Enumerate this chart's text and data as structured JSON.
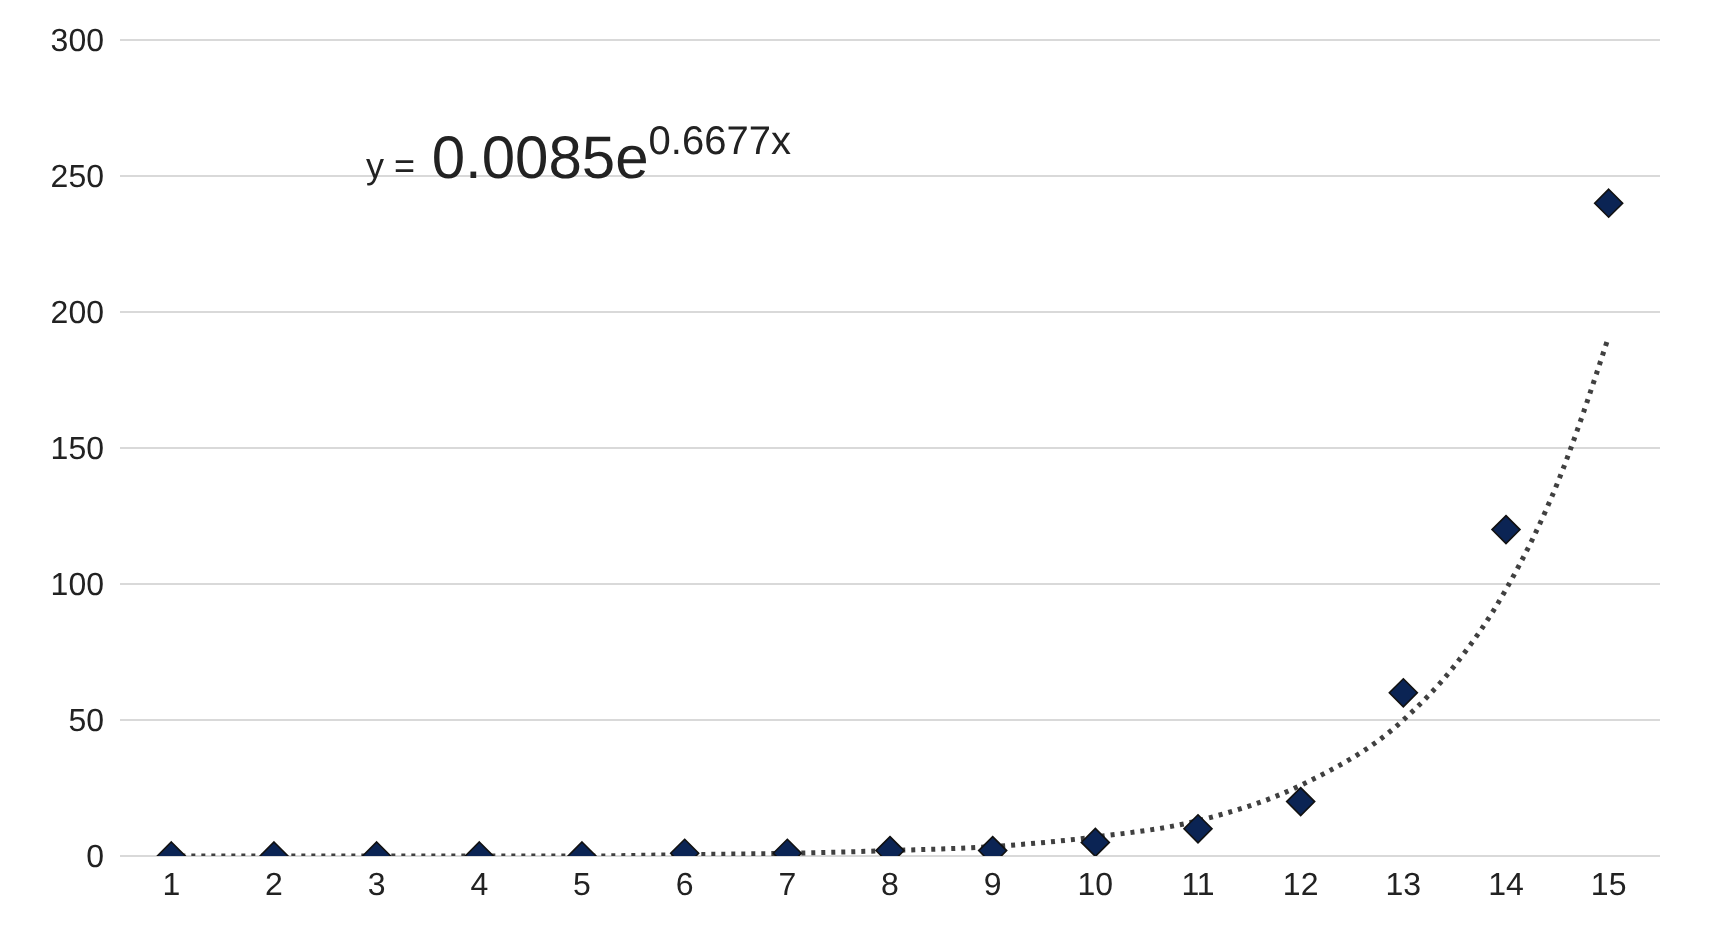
{
  "chart_data": {
    "type": "scatter",
    "xlim": [
      0.5,
      15.5
    ],
    "xticks": [
      1,
      2,
      3,
      4,
      5,
      6,
      7,
      8,
      9,
      10,
      11,
      12,
      13,
      14,
      15
    ],
    "ylim": [
      0,
      300
    ],
    "yticks": [
      0,
      50,
      100,
      150,
      200,
      250,
      300
    ],
    "grid": "y",
    "annotations": [
      "y = 0.0085e$^{0.6677x}$"
    ],
    "series": [
      {
        "type": "line",
        "color": "#404040",
        "line_style": "dotted",
        "marker": "none",
        "x": [
          1,
          2,
          3,
          4,
          5,
          6,
          7,
          8,
          9,
          10,
          11,
          12,
          13,
          13.5,
          14,
          14.5,
          15
        ],
        "values": [
          0,
          0,
          0,
          0,
          0,
          0.5,
          1,
          2,
          3.5,
          7,
          13,
          26,
          50,
          70,
          98,
          137,
          191
        ]
      },
      {
        "color": "#0b2454",
        "marker": "diamond",
        "x": [
          1,
          2,
          3,
          4,
          5,
          6,
          7,
          8,
          9,
          10,
          11,
          12,
          13,
          14,
          15
        ],
        "values": [
          0,
          0,
          0,
          0,
          0,
          1,
          1,
          2,
          2,
          5,
          10,
          20,
          60,
          120,
          240
        ]
      }
    ]
  }
}
